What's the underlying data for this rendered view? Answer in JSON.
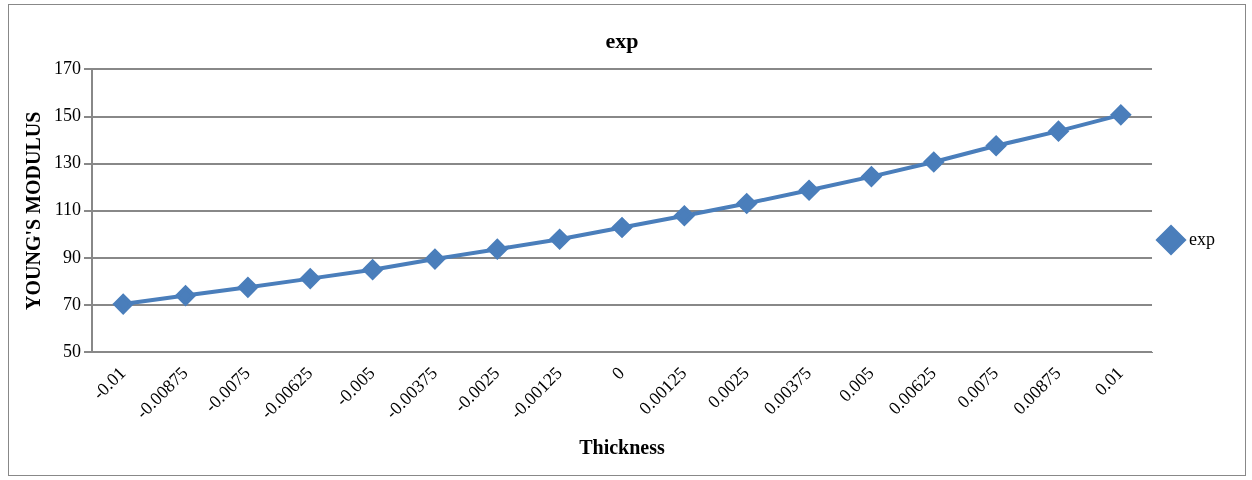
{
  "chart_data": {
    "type": "line",
    "title": "exp",
    "xlabel": "Thickness",
    "ylabel": "YOUNG'S MODULUS",
    "categories": [
      "-0.01",
      "-0.00875",
      "-0.0075",
      "-0.00625",
      "-0.005",
      "-0.00375",
      "-0.0025",
      "-0.00125",
      "0",
      "0.00125",
      "0.0025",
      "0.00375",
      "0.005",
      "0.00625",
      "0.0075",
      "0.00875",
      "0.01"
    ],
    "series": [
      {
        "name": "exp",
        "color": "#4a7ebb",
        "values": [
          70.4,
          74,
          77.5,
          81.2,
          85,
          89.5,
          93.7,
          97.9,
          102.9,
          107.9,
          113.1,
          118.7,
          124.5,
          130.7,
          137.6,
          143.8,
          150.7
        ]
      }
    ],
    "ylim": [
      50,
      170
    ],
    "yticks": [
      50,
      70,
      90,
      110,
      130,
      150,
      170
    ],
    "grid": "y",
    "legend": "right",
    "marker": "diamond",
    "line_style": "solid"
  }
}
